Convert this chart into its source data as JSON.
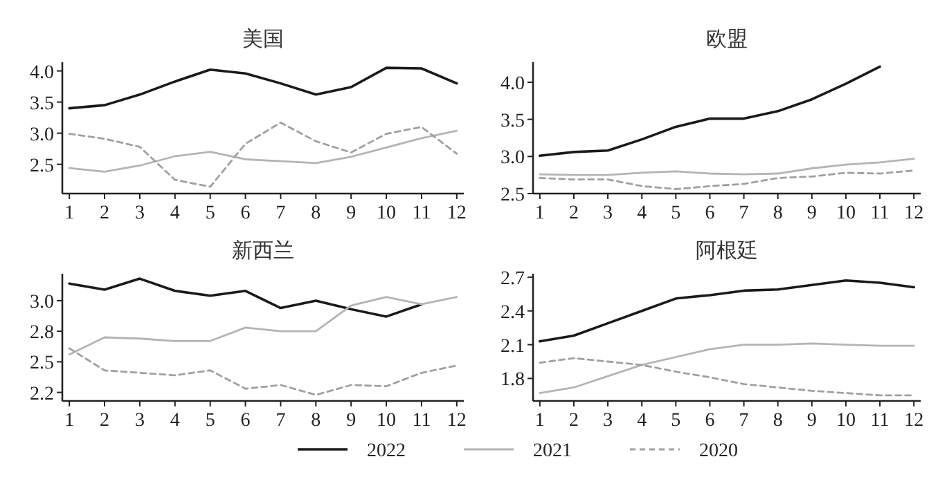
{
  "chart_data": [
    {
      "type": "line",
      "title": "美国",
      "x": [
        1,
        2,
        3,
        4,
        5,
        6,
        7,
        8,
        9,
        10,
        11,
        12
      ],
      "xlim": [
        0.8,
        12.2
      ],
      "xticks": [
        1,
        2,
        3,
        4,
        5,
        6,
        7,
        8,
        9,
        10,
        11,
        12
      ],
      "ylim": [
        2.03,
        4.14
      ],
      "yticks": [
        2.5,
        {
          "value": 3,
          "label": "3.0"
        },
        3.5,
        {
          "value": 4,
          "label": "4.0"
        }
      ],
      "legend": "bottom",
      "series": [
        {
          "name": "2022",
          "color": "#1a1a1a",
          "line_style": "solid",
          "values": [
            3.4,
            3.45,
            3.62,
            3.83,
            4.02,
            3.96,
            3.8,
            3.62,
            3.74,
            4.05,
            4.04,
            3.8
          ]
        },
        {
          "name": "2021",
          "color": "#b4b4b4",
          "line_style": "solid",
          "values": [
            2.44,
            2.38,
            2.48,
            2.63,
            2.7,
            2.58,
            2.55,
            2.52,
            2.62,
            2.77,
            2.92,
            3.04
          ]
        },
        {
          "name": "2020",
          "color": "#a0a0a0",
          "line_style": "dashed",
          "values": [
            2.99,
            2.91,
            2.78,
            2.25,
            2.14,
            2.83,
            3.17,
            2.87,
            2.69,
            2.99,
            3.1,
            2.67
          ]
        }
      ]
    },
    {
      "type": "line",
      "title": "欧盟",
      "x": [
        1,
        2,
        3,
        4,
        5,
        6,
        7,
        8,
        9,
        10,
        11,
        12
      ],
      "xlim": [
        0.8,
        12.2
      ],
      "xticks": [
        1,
        2,
        3,
        4,
        5,
        6,
        7,
        8,
        9,
        10,
        11,
        12
      ],
      "ylim": [
        2.5,
        4.27
      ],
      "yticks": [
        2.5,
        {
          "value": 3,
          "label": "3.0"
        },
        3.5,
        {
          "value": 4,
          "label": "4.0"
        }
      ],
      "series": [
        {
          "color": "#1a1a1a",
          "line_style": "solid",
          "values": [
            3.01,
            3.06,
            3.08,
            3.23,
            3.4,
            3.51,
            3.51,
            3.61,
            3.77,
            3.98,
            4.21,
            null
          ]
        },
        {
          "color": "#b4b4b4",
          "line_style": "solid",
          "values": [
            2.76,
            2.75,
            2.75,
            2.78,
            2.8,
            2.77,
            2.76,
            2.77,
            2.84,
            2.89,
            2.92,
            2.97
          ]
        },
        {
          "color": "#a0a0a0",
          "line_style": "dashed",
          "values": [
            2.71,
            2.69,
            2.69,
            2.6,
            2.56,
            2.6,
            2.63,
            2.71,
            2.73,
            2.78,
            2.77,
            2.81
          ]
        }
      ]
    },
    {
      "type": "line",
      "title": "新西兰",
      "x": [
        1,
        2,
        3,
        4,
        5,
        6,
        7,
        8,
        9,
        10,
        11,
        12
      ],
      "xlim": [
        0.8,
        12.2
      ],
      "xticks": [
        1,
        2,
        3,
        4,
        5,
        6,
        7,
        8,
        9,
        10,
        11,
        12
      ],
      "ylim": [
        2.18,
        3.22
      ],
      "yticks": [
        {
          "value": 2.25,
          "label": "2.2"
        },
        2.5,
        {
          "value": 2.75,
          "label": "2.8"
        },
        {
          "value": 3,
          "label": "3.0"
        }
      ],
      "series": [
        {
          "color": "#1a1a1a",
          "line_style": "solid",
          "values": [
            3.14,
            3.09,
            3.18,
            3.08,
            3.04,
            3.08,
            2.94,
            3.0,
            2.93,
            2.87,
            2.97,
            null
          ]
        },
        {
          "color": "#b4b4b4",
          "line_style": "solid",
          "values": [
            2.56,
            2.7,
            2.69,
            2.67,
            2.67,
            2.78,
            2.75,
            2.75,
            2.96,
            3.03,
            2.97,
            3.03
          ]
        },
        {
          "color": "#a0a0a0",
          "line_style": "dashed",
          "values": [
            2.61,
            2.43,
            2.41,
            2.39,
            2.43,
            2.28,
            2.31,
            2.23,
            2.31,
            2.3,
            2.41,
            2.47
          ]
        }
      ]
    },
    {
      "type": "line",
      "title": "阿根廷",
      "x": [
        1,
        2,
        3,
        4,
        5,
        6,
        7,
        8,
        9,
        10,
        11,
        12
      ],
      "xlim": [
        0.8,
        12.2
      ],
      "xticks": [
        1,
        2,
        3,
        4,
        5,
        6,
        7,
        8,
        9,
        10,
        11,
        12
      ],
      "ylim": [
        1.6,
        2.73
      ],
      "yticks": [
        1.8,
        2.1,
        2.4,
        2.7
      ],
      "series": [
        {
          "color": "#1a1a1a",
          "line_style": "solid",
          "values": [
            2.13,
            2.18,
            2.29,
            2.4,
            2.51,
            2.54,
            2.58,
            2.59,
            2.63,
            2.67,
            2.65,
            2.61
          ]
        },
        {
          "color": "#b4b4b4",
          "line_style": "solid",
          "values": [
            1.67,
            1.72,
            1.82,
            1.92,
            1.99,
            2.06,
            2.1,
            2.1,
            2.11,
            2.1,
            2.09,
            2.09
          ]
        },
        {
          "color": "#a0a0a0",
          "line_style": "dashed",
          "values": [
            1.94,
            1.98,
            1.95,
            1.92,
            1.86,
            1.81,
            1.75,
            1.72,
            1.69,
            1.67,
            1.65,
            1.65
          ]
        }
      ]
    }
  ]
}
